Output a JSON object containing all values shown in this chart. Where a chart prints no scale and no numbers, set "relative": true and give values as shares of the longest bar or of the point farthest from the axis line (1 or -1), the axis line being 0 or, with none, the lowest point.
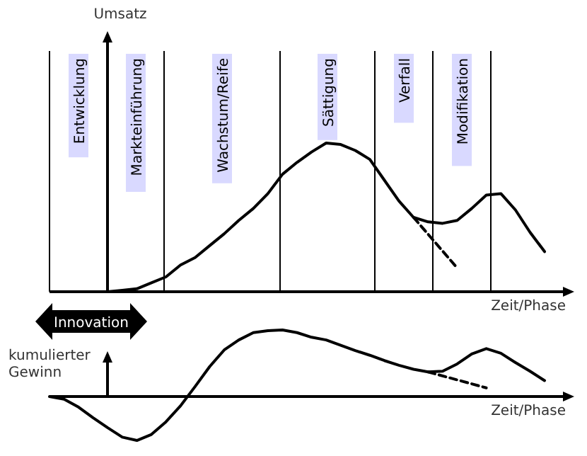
{
  "chart_data": [
    {
      "type": "line",
      "relative": true,
      "ylabel": "Umsatz",
      "xlabel": "Zeit/Phase",
      "categories": [
        null,
        null,
        null,
        null,
        null,
        null,
        null,
        null,
        null,
        null,
        null,
        null,
        null,
        null,
        null,
        null,
        null,
        null,
        null,
        null,
        null,
        null,
        null,
        null,
        null,
        null,
        null,
        null,
        null,
        null,
        null,
        null,
        null,
        null,
        null
      ],
      "annotations": [
        "Entwicklung",
        "Markteinführung",
        "Wachstum/Reife",
        "Sättigung",
        "Verfall",
        "Modifikation"
      ],
      "series": [
        {
          "color": "#000000",
          "line_style": "solid",
          "values": [
            null,
            null,
            null,
            null,
            0,
            0.01,
            0.02,
            0.06,
            0.1,
            0.18,
            0.23,
            0.31,
            0.39,
            0.48,
            0.56,
            0.66,
            0.79,
            0.87,
            0.94,
            1,
            0.99,
            0.95,
            0.89,
            0.75,
            0.61,
            0.5,
            0.47,
            0.46,
            0.48,
            0.56,
            0.65,
            0.66,
            0.55,
            0.4,
            0.27
          ]
        },
        {
          "color": "#000000",
          "line_style": "dashed",
          "values": [
            null,
            null,
            null,
            null,
            null,
            null,
            null,
            null,
            null,
            null,
            null,
            null,
            null,
            null,
            null,
            null,
            null,
            null,
            null,
            null,
            null,
            null,
            null,
            null,
            null,
            0.5,
            null,
            null,
            0.16,
            null,
            null,
            null,
            null,
            null,
            null
          ]
        }
      ]
    },
    {
      "type": "line",
      "relative": true,
      "ylabel": "kumulierter Gewinn",
      "xlabel": "Zeit/Phase",
      "annotations": [
        "Innovation"
      ],
      "categories": [
        null,
        null,
        null,
        null,
        null,
        null,
        null,
        null,
        null,
        null,
        null,
        null,
        null,
        null,
        null,
        null,
        null,
        null,
        null,
        null,
        null,
        null,
        null,
        null,
        null,
        null,
        null,
        null,
        null,
        null,
        null,
        null,
        null,
        null,
        null
      ],
      "series": [
        {
          "color": "#000000",
          "line_style": "solid",
          "values": [
            0,
            -0.04,
            -0.16,
            -0.32,
            -0.47,
            -0.61,
            -0.66,
            -0.57,
            -0.38,
            -0.14,
            0.15,
            0.45,
            0.7,
            0.85,
            0.96,
            0.99,
            1,
            0.96,
            0.89,
            0.85,
            0.77,
            0.69,
            0.62,
            0.54,
            0.47,
            0.41,
            0.37,
            0.38,
            0.49,
            0.64,
            0.72,
            0.65,
            0.51,
            0.38,
            0.24
          ]
        },
        {
          "color": "#000000",
          "line_style": "dashed",
          "values": [
            null,
            null,
            null,
            null,
            null,
            null,
            null,
            null,
            null,
            null,
            null,
            null,
            null,
            null,
            null,
            null,
            null,
            null,
            null,
            null,
            null,
            null,
            null,
            null,
            null,
            null,
            0.37,
            null,
            null,
            null,
            0.13,
            null,
            null,
            null,
            null
          ]
        }
      ]
    }
  ]
}
